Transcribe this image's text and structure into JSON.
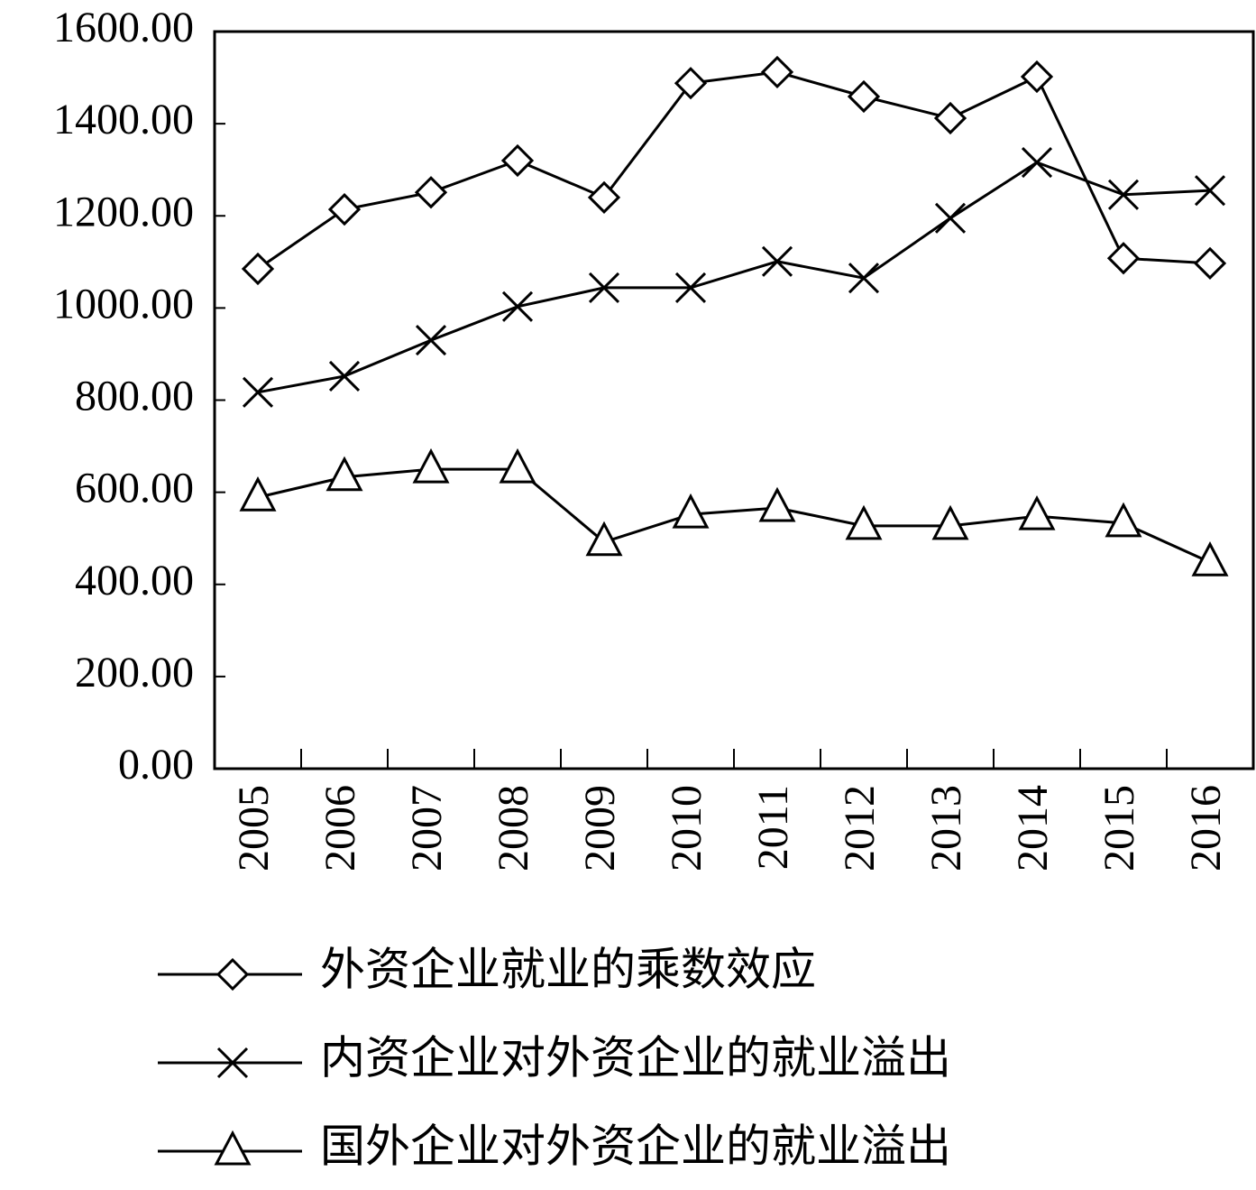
{
  "chart_data": {
    "type": "line",
    "categories": [
      "2005",
      "2006",
      "2007",
      "2008",
      "2009",
      "2010",
      "2011",
      "2012",
      "2013",
      "2014",
      "2015",
      "2016"
    ],
    "series": [
      {
        "name": "外资企业就业的乘数效应",
        "color": "#000000",
        "marker": "diamond",
        "values": [
          1085,
          1214,
          1251,
          1320,
          1240,
          1488,
          1512,
          1459,
          1412,
          1502,
          1108,
          1097
        ]
      },
      {
        "name": "内资企业对外资企业的就业溢出",
        "color": "#000000",
        "marker": "cross",
        "values": [
          817,
          852,
          930,
          1003,
          1044,
          1044,
          1101,
          1065,
          1195,
          1316,
          1246,
          1255
        ]
      },
      {
        "name": "国外企业对外资企业的就业溢出",
        "color": "#000000",
        "marker": "triangle",
        "values": [
          589,
          633,
          650,
          650,
          492,
          552,
          566,
          527,
          527,
          548,
          533,
          448
        ]
      }
    ],
    "ylim": [
      0,
      1600
    ],
    "yticks": [
      {
        "value": 0,
        "label": "0.00"
      },
      {
        "value": 200,
        "label": "200.00"
      },
      {
        "value": 400,
        "label": "400.00"
      },
      {
        "value": 600,
        "label": "600.00"
      },
      {
        "value": 800,
        "label": "800.00"
      },
      {
        "value": 1000,
        "label": "1000.00"
      },
      {
        "value": 1200,
        "label": "1200.00"
      },
      {
        "value": 1400,
        "label": "1400.00"
      },
      {
        "value": 1600,
        "label": "1600.00"
      }
    ],
    "grid": false,
    "legend": "bottom"
  }
}
